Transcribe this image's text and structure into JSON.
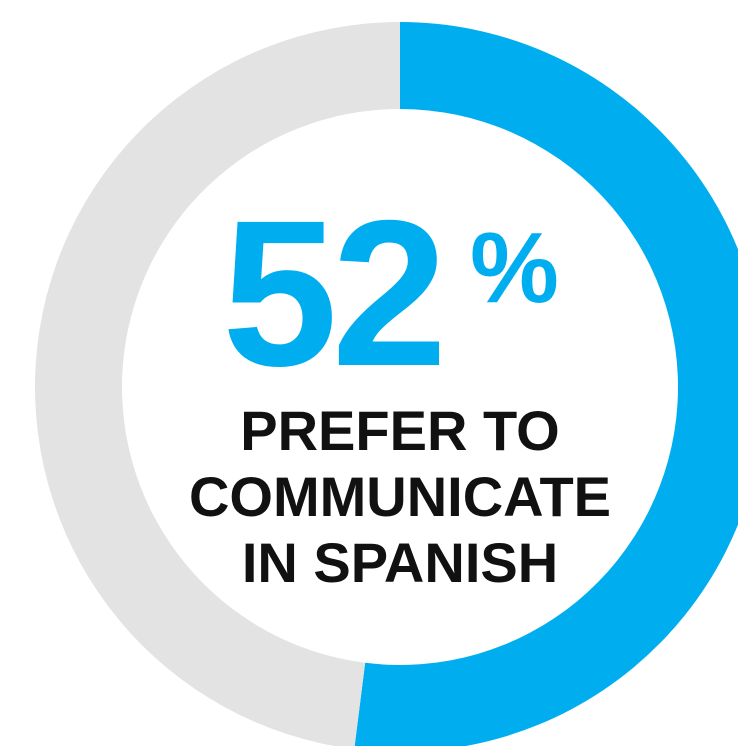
{
  "chart_data": {
    "type": "pie",
    "style": "donut",
    "slices": [
      {
        "value": 52,
        "color": "#00aeef"
      },
      {
        "value": 48,
        "color": "#e3e3e3"
      }
    ],
    "center_value": "52",
    "center_unit": "%",
    "caption_lines": [
      "PREFER TO",
      "COMMUNICATE",
      "IN SPANISH"
    ]
  },
  "colors": {
    "accent": "#00aeef",
    "track": "#e3e3e3",
    "text": "#111111",
    "background": "#ffffff"
  }
}
